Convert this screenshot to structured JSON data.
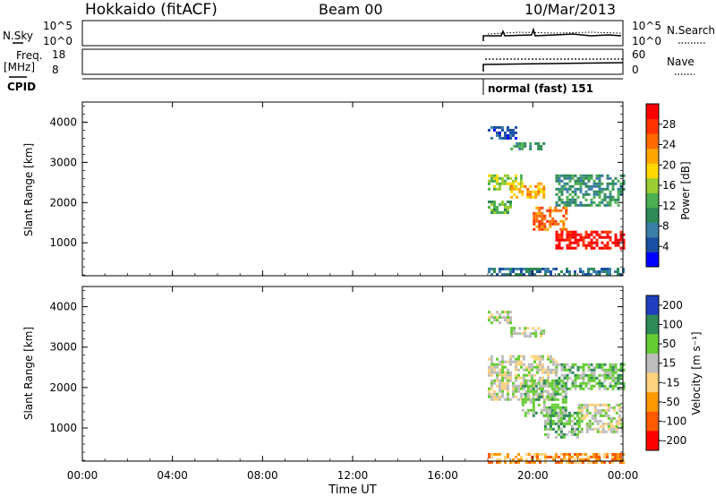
{
  "header": {
    "station": "Hokkaido (fitACF)",
    "beam": "Beam 00",
    "date": "10/Mar/2013"
  },
  "top_panels": {
    "nsky_label": "N.Sky",
    "nsky_ticks": [
      "10^5",
      "10^0"
    ],
    "nsearch_label": "N.Search",
    "nsearch_ticks": [
      "10^5",
      "10^0"
    ],
    "freq_label": "Freq.",
    "freq_unit": "[MHz]",
    "freq_ticks": [
      "18",
      "8"
    ],
    "nave_label": "Nave",
    "nave_ticks": [
      "60",
      "0"
    ],
    "cpid_label": "CPID",
    "cpid_value": "normal (fast) 151"
  },
  "chart_data": [
    {
      "type": "heatmap",
      "name": "power",
      "ylabel": "Slant Range [km]",
      "ylim": [
        180,
        4500
      ],
      "yticks": [
        1000,
        2000,
        3000,
        4000
      ],
      "xlim": [
        0,
        24
      ],
      "data_start_hour": 18,
      "colorbar": {
        "label": "Power [dB]",
        "ticks": [
          4,
          8,
          12,
          16,
          20,
          24,
          28
        ],
        "colors": [
          "#0000ff",
          "#1a4fa3",
          "#3a7fa8",
          "#2e8b57",
          "#4caf50",
          "#9acd32",
          "#ffd700",
          "#ffa500",
          "#ff6a00",
          "#ff3300",
          "#ff0000"
        ]
      },
      "bands": [
        {
          "h0": 18.0,
          "h1": 19.2,
          "r0": 3600,
          "r1": 3900,
          "level": 1
        },
        {
          "h0": 19.0,
          "h1": 20.5,
          "r0": 3300,
          "r1": 3500,
          "level": 3
        },
        {
          "h0": 18.0,
          "h1": 19.5,
          "r0": 2350,
          "r1": 2700,
          "level": 5
        },
        {
          "h0": 19.0,
          "h1": 20.5,
          "r0": 2100,
          "r1": 2500,
          "level": 7
        },
        {
          "h0": 18.0,
          "h1": 19.0,
          "r0": 1750,
          "r1": 2050,
          "level": 4
        },
        {
          "h0": 20.0,
          "h1": 21.5,
          "r0": 1300,
          "r1": 1900,
          "level": 8
        },
        {
          "h0": 21.0,
          "h1": 24.0,
          "r0": 850,
          "r1": 1300,
          "level": 10
        },
        {
          "h0": 21.0,
          "h1": 24.0,
          "r0": 1900,
          "r1": 2700,
          "level": 3
        },
        {
          "h0": 18.0,
          "h1": 24.0,
          "r0": 180,
          "r1": 380,
          "level": 2
        }
      ]
    },
    {
      "type": "heatmap",
      "name": "velocity",
      "ylabel": "Slant Range [km]",
      "ylim": [
        180,
        4500
      ],
      "yticks": [
        1000,
        2000,
        3000,
        4000
      ],
      "xlim": [
        0,
        24
      ],
      "data_start_hour": 18,
      "xticks": [
        "00:00",
        "04:00",
        "08:00",
        "12:00",
        "16:00",
        "20:00",
        "00:00"
      ],
      "xlabel": "Time UT",
      "colorbar": {
        "label": "Velocity [m s⁻¹]",
        "ticks": [
          200,
          100,
          50,
          15,
          -15,
          -50,
          -100,
          -200
        ],
        "colors": [
          "#1f3fbf",
          "#2e8b57",
          "#66cc33",
          "#bdbdbd",
          "#ffd27f",
          "#ff9900",
          "#ff5a00",
          "#ff0000"
        ]
      },
      "bands": [
        {
          "h0": 18.0,
          "h1": 19.0,
          "r0": 3600,
          "r1": 3900,
          "level": 3
        },
        {
          "h0": 19.0,
          "h1": 20.5,
          "r0": 3300,
          "r1": 3500,
          "level": 3
        },
        {
          "h0": 18.0,
          "h1": 21.0,
          "r0": 1700,
          "r1": 2800,
          "level": 3
        },
        {
          "h0": 19.5,
          "h1": 21.5,
          "r0": 1300,
          "r1": 2200,
          "level": 2
        },
        {
          "h0": 20.5,
          "h1": 22.0,
          "r0": 800,
          "r1": 1400,
          "level": 2
        },
        {
          "h0": 22.0,
          "h1": 24.0,
          "r0": 900,
          "r1": 1600,
          "level": 3
        },
        {
          "h0": 21.0,
          "h1": 24.0,
          "r0": 2000,
          "r1": 2600,
          "level": 2
        },
        {
          "h0": 18.0,
          "h1": 24.0,
          "r0": 180,
          "r1": 380,
          "level": 5
        }
      ]
    }
  ]
}
